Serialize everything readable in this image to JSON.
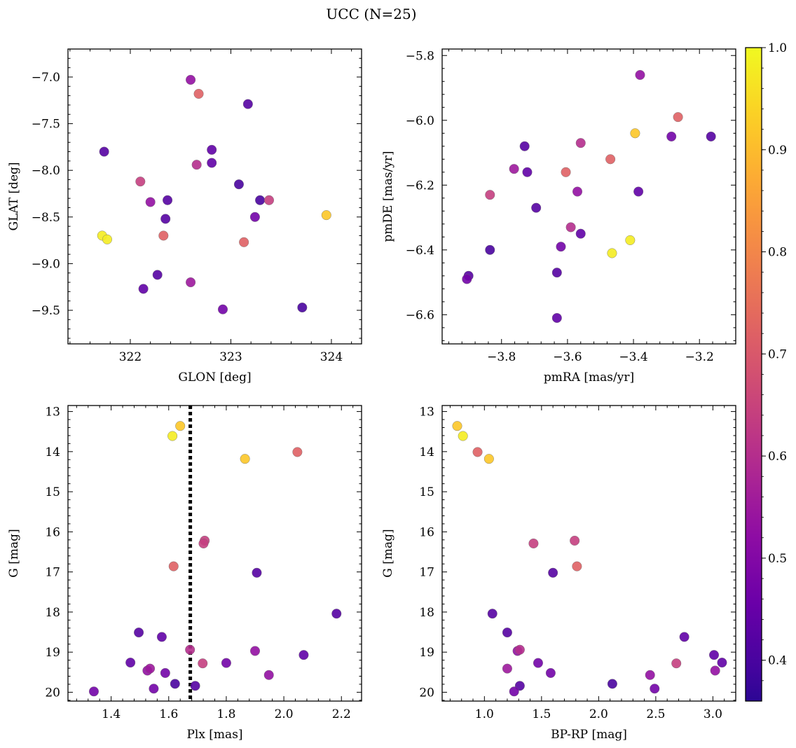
{
  "figure": {
    "title": "UCC (N=25)"
  },
  "colorbar": {
    "colormap": "plasma",
    "range": [
      0.36,
      1.0
    ],
    "ticks": [
      0.4,
      0.5,
      0.6,
      0.7,
      0.8,
      0.9,
      1.0
    ],
    "tick_labels": [
      "0.4",
      "0.5",
      "0.6",
      "0.7",
      "0.8",
      "0.9",
      "1.0"
    ]
  },
  "chart_data": [
    {
      "type": "scatter",
      "id": "glon_glat",
      "xlabel": "GLON [deg]",
      "ylabel": "GLAT [deg]",
      "xlim": [
        321.38,
        324.3
      ],
      "ylim": [
        -9.86,
        -6.7
      ],
      "x_ticks": [
        322,
        323,
        324
      ],
      "x_tick_labels": [
        "322",
        "323",
        "324"
      ],
      "y_ticks": [
        -7.0,
        -7.5,
        -8.0,
        -8.5,
        -9.0,
        -9.5
      ],
      "y_tick_labels": [
        "−7.0",
        "−7.5",
        "−8.0",
        "−8.5",
        "−9.0",
        "−9.5"
      ],
      "points": [
        {
          "x": 322.6,
          "y": -7.03,
          "p": 0.53
        },
        {
          "x": 322.68,
          "y": -7.18,
          "p": 0.72
        },
        {
          "x": 323.17,
          "y": -7.29,
          "p": 0.42
        },
        {
          "x": 321.74,
          "y": -7.8,
          "p": 0.42
        },
        {
          "x": 322.81,
          "y": -7.78,
          "p": 0.44
        },
        {
          "x": 322.81,
          "y": -7.92,
          "p": 0.44
        },
        {
          "x": 322.66,
          "y": -7.94,
          "p": 0.6
        },
        {
          "x": 322.1,
          "y": -8.12,
          "p": 0.64
        },
        {
          "x": 323.08,
          "y": -8.15,
          "p": 0.4
        },
        {
          "x": 322.2,
          "y": -8.34,
          "p": 0.53
        },
        {
          "x": 322.37,
          "y": -8.32,
          "p": 0.42
        },
        {
          "x": 323.29,
          "y": -8.32,
          "p": 0.4
        },
        {
          "x": 323.38,
          "y": -8.32,
          "p": 0.64
        },
        {
          "x": 322.35,
          "y": -8.52,
          "p": 0.42
        },
        {
          "x": 323.24,
          "y": -8.5,
          "p": 0.47
        },
        {
          "x": 323.95,
          "y": -8.48,
          "p": 0.92
        },
        {
          "x": 321.72,
          "y": -8.7,
          "p": 0.98
        },
        {
          "x": 321.77,
          "y": -8.74,
          "p": 0.98
        },
        {
          "x": 322.33,
          "y": -8.7,
          "p": 0.72
        },
        {
          "x": 323.13,
          "y": -8.77,
          "p": 0.72
        },
        {
          "x": 322.27,
          "y": -9.12,
          "p": 0.42
        },
        {
          "x": 322.13,
          "y": -9.27,
          "p": 0.44
        },
        {
          "x": 322.6,
          "y": -9.2,
          "p": 0.55
        },
        {
          "x": 322.92,
          "y": -9.49,
          "p": 0.47
        },
        {
          "x": 323.71,
          "y": -9.47,
          "p": 0.4
        }
      ]
    },
    {
      "type": "scatter",
      "id": "pmra_pmde",
      "xlabel": "pmRA [mas/yr]",
      "ylabel": "pmDE [mas/yr]",
      "xlim": [
        -3.98,
        -3.09
      ],
      "ylim": [
        -6.69,
        -5.78
      ],
      "x_ticks": [
        -3.8,
        -3.6,
        -3.4,
        -3.2
      ],
      "x_tick_labels": [
        "−3.8",
        "−3.6",
        "−3.4",
        "−3.2"
      ],
      "y_ticks": [
        -5.8,
        -6.0,
        -6.2,
        -6.4,
        -6.6
      ],
      "y_tick_labels": [
        "−5.8",
        "−6.0",
        "−6.2",
        "−6.4",
        "−6.6"
      ],
      "points": [
        {
          "x": -3.38,
          "y": -5.86,
          "p": 0.53
        },
        {
          "x": -3.265,
          "y": -5.99,
          "p": 0.72
        },
        {
          "x": -3.395,
          "y": -6.04,
          "p": 0.92
        },
        {
          "x": -3.285,
          "y": -6.05,
          "p": 0.47
        },
        {
          "x": -3.165,
          "y": -6.05,
          "p": 0.42
        },
        {
          "x": -3.56,
          "y": -6.07,
          "p": 0.6
        },
        {
          "x": -3.73,
          "y": -6.08,
          "p": 0.42
        },
        {
          "x": -3.47,
          "y": -6.12,
          "p": 0.72
        },
        {
          "x": -3.762,
          "y": -6.15,
          "p": 0.55
        },
        {
          "x": -3.722,
          "y": -6.16,
          "p": 0.44
        },
        {
          "x": -3.605,
          "y": -6.16,
          "p": 0.72
        },
        {
          "x": -3.835,
          "y": -6.23,
          "p": 0.64
        },
        {
          "x": -3.57,
          "y": -6.22,
          "p": 0.53
        },
        {
          "x": -3.385,
          "y": -6.22,
          "p": 0.44
        },
        {
          "x": -3.695,
          "y": -6.27,
          "p": 0.42
        },
        {
          "x": -3.59,
          "y": -6.33,
          "p": 0.6
        },
        {
          "x": -3.56,
          "y": -6.35,
          "p": 0.44
        },
        {
          "x": -3.62,
          "y": -6.39,
          "p": 0.47
        },
        {
          "x": -3.835,
          "y": -6.4,
          "p": 0.4
        },
        {
          "x": -3.41,
          "y": -6.37,
          "p": 0.98
        },
        {
          "x": -3.465,
          "y": -6.41,
          "p": 0.98
        },
        {
          "x": -3.632,
          "y": -6.47,
          "p": 0.42
        },
        {
          "x": -3.9,
          "y": -6.48,
          "p": 0.42
        },
        {
          "x": -3.905,
          "y": -6.49,
          "p": 0.47
        },
        {
          "x": -3.632,
          "y": -6.61,
          "p": 0.44
        }
      ]
    },
    {
      "type": "scatter",
      "id": "plx_g",
      "xlabel": "Plx [mas]",
      "ylabel": "G [mag]",
      "xlim": [
        1.25,
        2.27
      ],
      "ylim": [
        20.22,
        12.85
      ],
      "x_ticks": [
        1.4,
        1.6,
        1.8,
        2.0,
        2.2
      ],
      "x_tick_labels": [
        "1.4",
        "1.6",
        "1.8",
        "2.0",
        "2.2"
      ],
      "y_ticks": [
        13,
        14,
        15,
        16,
        17,
        18,
        19,
        20
      ],
      "y_tick_labels": [
        "13",
        "14",
        "15",
        "16",
        "17",
        "18",
        "19",
        "20"
      ],
      "vline": 1.675,
      "points": [
        {
          "x": 1.64,
          "y": 13.36,
          "p": 0.92
        },
        {
          "x": 1.613,
          "y": 13.61,
          "p": 0.98
        },
        {
          "x": 1.865,
          "y": 14.18,
          "p": 0.92
        },
        {
          "x": 2.047,
          "y": 14.01,
          "p": 0.72
        },
        {
          "x": 1.725,
          "y": 16.22,
          "p": 0.64
        },
        {
          "x": 1.721,
          "y": 16.29,
          "p": 0.64
        },
        {
          "x": 1.617,
          "y": 16.86,
          "p": 0.72
        },
        {
          "x": 1.906,
          "y": 17.02,
          "p": 0.42
        },
        {
          "x": 2.183,
          "y": 18.04,
          "p": 0.42
        },
        {
          "x": 1.496,
          "y": 18.51,
          "p": 0.42
        },
        {
          "x": 1.576,
          "y": 18.62,
          "p": 0.44
        },
        {
          "x": 1.674,
          "y": 18.94,
          "p": 0.6
        },
        {
          "x": 1.718,
          "y": 19.28,
          "p": 0.64
        },
        {
          "x": 1.9,
          "y": 18.97,
          "p": 0.53
        },
        {
          "x": 2.069,
          "y": 19.07,
          "p": 0.44
        },
        {
          "x": 1.467,
          "y": 19.26,
          "p": 0.44
        },
        {
          "x": 1.8,
          "y": 19.27,
          "p": 0.47
        },
        {
          "x": 1.535,
          "y": 19.41,
          "p": 0.55
        },
        {
          "x": 1.526,
          "y": 19.46,
          "p": 0.53
        },
        {
          "x": 1.588,
          "y": 19.52,
          "p": 0.47
        },
        {
          "x": 1.948,
          "y": 19.57,
          "p": 0.53
        },
        {
          "x": 1.622,
          "y": 19.79,
          "p": 0.4
        },
        {
          "x": 1.692,
          "y": 19.84,
          "p": 0.42
        },
        {
          "x": 1.548,
          "y": 19.91,
          "p": 0.47
        },
        {
          "x": 1.34,
          "y": 19.98,
          "p": 0.47
        }
      ]
    },
    {
      "type": "scatter",
      "id": "bprp_g",
      "xlabel": "BP-RP [mag]",
      "ylabel": "G [mag]",
      "xlim": [
        0.63,
        3.2
      ],
      "ylim": [
        20.22,
        12.85
      ],
      "x_ticks": [
        1.0,
        1.5,
        2.0,
        2.5,
        3.0
      ],
      "x_tick_labels": [
        "1.0",
        "1.5",
        "2.0",
        "2.5",
        "3.0"
      ],
      "y_ticks": [
        13,
        14,
        15,
        16,
        17,
        18,
        19,
        20
      ],
      "y_tick_labels": [
        "13",
        "14",
        "15",
        "16",
        "17",
        "18",
        "19",
        "20"
      ],
      "points": [
        {
          "x": 0.762,
          "y": 13.36,
          "p": 0.92
        },
        {
          "x": 0.812,
          "y": 13.61,
          "p": 0.98
        },
        {
          "x": 0.94,
          "y": 14.01,
          "p": 0.72
        },
        {
          "x": 1.04,
          "y": 14.18,
          "p": 0.92
        },
        {
          "x": 1.79,
          "y": 16.22,
          "p": 0.64
        },
        {
          "x": 1.43,
          "y": 16.29,
          "p": 0.64
        },
        {
          "x": 1.81,
          "y": 16.86,
          "p": 0.72
        },
        {
          "x": 1.6,
          "y": 17.02,
          "p": 0.42
        },
        {
          "x": 1.07,
          "y": 18.04,
          "p": 0.42
        },
        {
          "x": 1.2,
          "y": 18.51,
          "p": 0.42
        },
        {
          "x": 2.75,
          "y": 18.62,
          "p": 0.44
        },
        {
          "x": 1.31,
          "y": 18.94,
          "p": 0.6
        },
        {
          "x": 1.29,
          "y": 18.97,
          "p": 0.53
        },
        {
          "x": 3.01,
          "y": 19.07,
          "p": 0.44
        },
        {
          "x": 3.08,
          "y": 19.26,
          "p": 0.44
        },
        {
          "x": 1.47,
          "y": 19.27,
          "p": 0.47
        },
        {
          "x": 2.68,
          "y": 19.28,
          "p": 0.64
        },
        {
          "x": 1.2,
          "y": 19.41,
          "p": 0.55
        },
        {
          "x": 3.02,
          "y": 19.46,
          "p": 0.53
        },
        {
          "x": 1.58,
          "y": 19.52,
          "p": 0.47
        },
        {
          "x": 2.45,
          "y": 19.57,
          "p": 0.53
        },
        {
          "x": 2.12,
          "y": 19.79,
          "p": 0.4
        },
        {
          "x": 1.31,
          "y": 19.84,
          "p": 0.42
        },
        {
          "x": 2.49,
          "y": 19.91,
          "p": 0.47
        },
        {
          "x": 1.26,
          "y": 19.98,
          "p": 0.47
        }
      ]
    }
  ]
}
